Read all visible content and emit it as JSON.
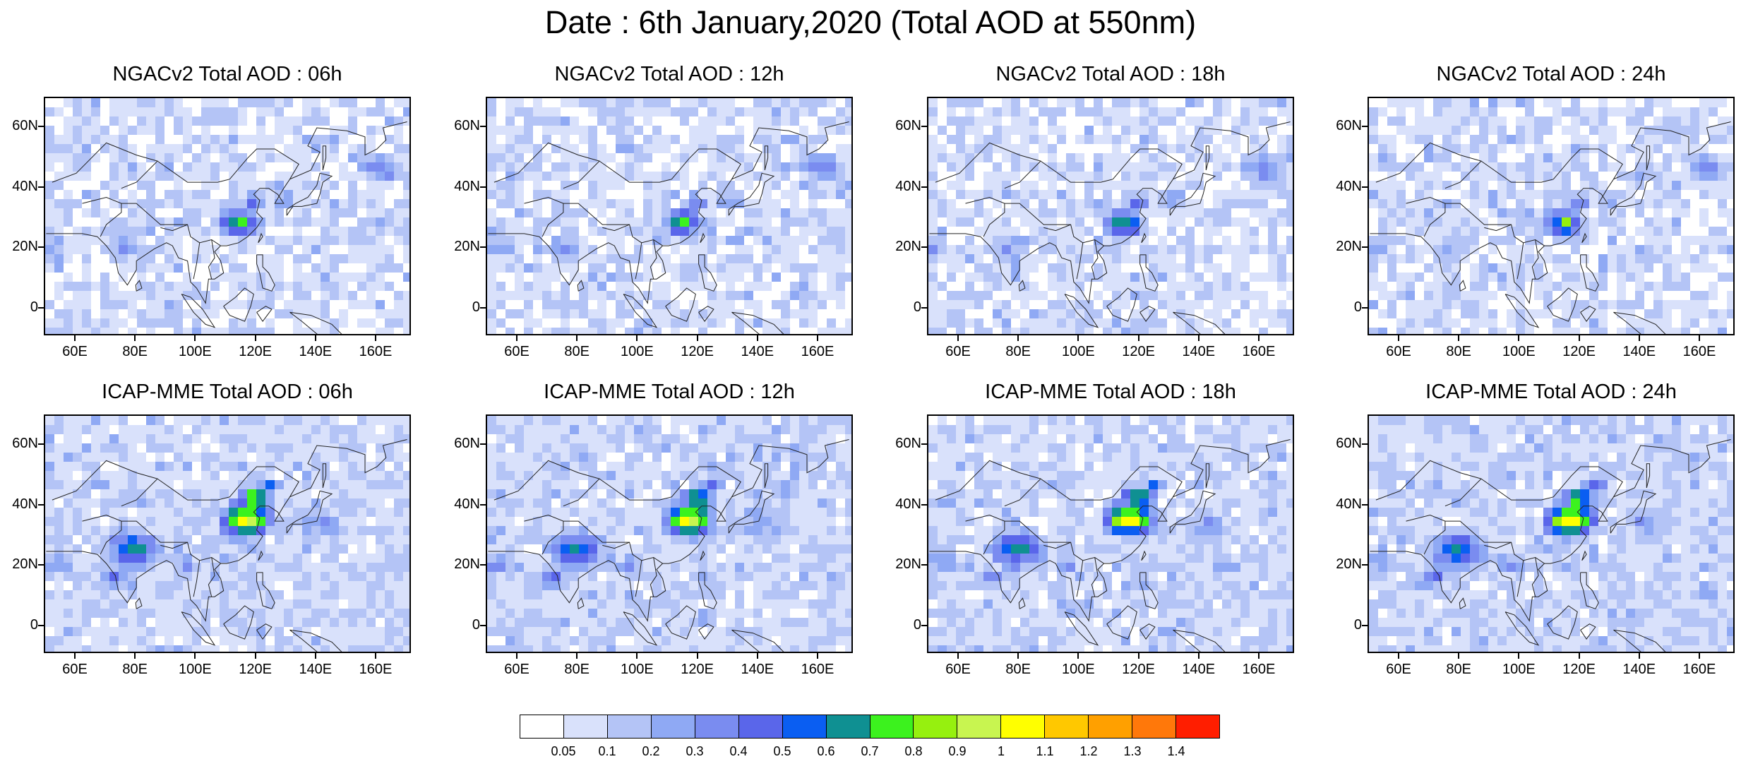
{
  "title": "Date : 6th January,2020 (Total AOD at 550nm)",
  "panels": [
    {
      "title": "NGACv2 Total AOD : 06h",
      "model": "NGACv2",
      "hour": "06h"
    },
    {
      "title": "NGACv2 Total AOD : 12h",
      "model": "NGACv2",
      "hour": "12h"
    },
    {
      "title": "NGACv2 Total AOD : 18h",
      "model": "NGACv2",
      "hour": "18h"
    },
    {
      "title": "NGACv2 Total AOD : 24h",
      "model": "NGACv2",
      "hour": "24h"
    },
    {
      "title": "ICAP-MME Total AOD : 06h",
      "model": "ICAP-MME",
      "hour": "06h"
    },
    {
      "title": "ICAP-MME Total AOD : 12h",
      "model": "ICAP-MME",
      "hour": "12h"
    },
    {
      "title": "ICAP-MME Total AOD : 18h",
      "model": "ICAP-MME",
      "hour": "18h"
    },
    {
      "title": "ICAP-MME Total AOD : 24h",
      "model": "ICAP-MME",
      "hour": "24h"
    }
  ],
  "axes": {
    "lat_labels": [
      "60N",
      "40N",
      "20N",
      "0"
    ],
    "lon_labels": [
      "60E",
      "80E",
      "100E",
      "120E",
      "140E",
      "160E"
    ]
  },
  "colorbar": {
    "labels": [
      "0.05",
      "0.1",
      "0.2",
      "0.3",
      "0.4",
      "0.5",
      "0.6",
      "0.7",
      "0.8",
      "0.9",
      "1",
      "1.1",
      "1.2",
      "1.3",
      "1.4"
    ],
    "colors": [
      "#ffffff",
      "#d9e1fb",
      "#b4c4f6",
      "#8fa9f4",
      "#7a8cf0",
      "#5a66ea",
      "#0a5ef2",
      "#0f9092",
      "#3cf21e",
      "#96f00f",
      "#c8f550",
      "#ffff00",
      "#ffc800",
      "#ffa000",
      "#ff780a",
      "#ff1e00"
    ]
  }
}
